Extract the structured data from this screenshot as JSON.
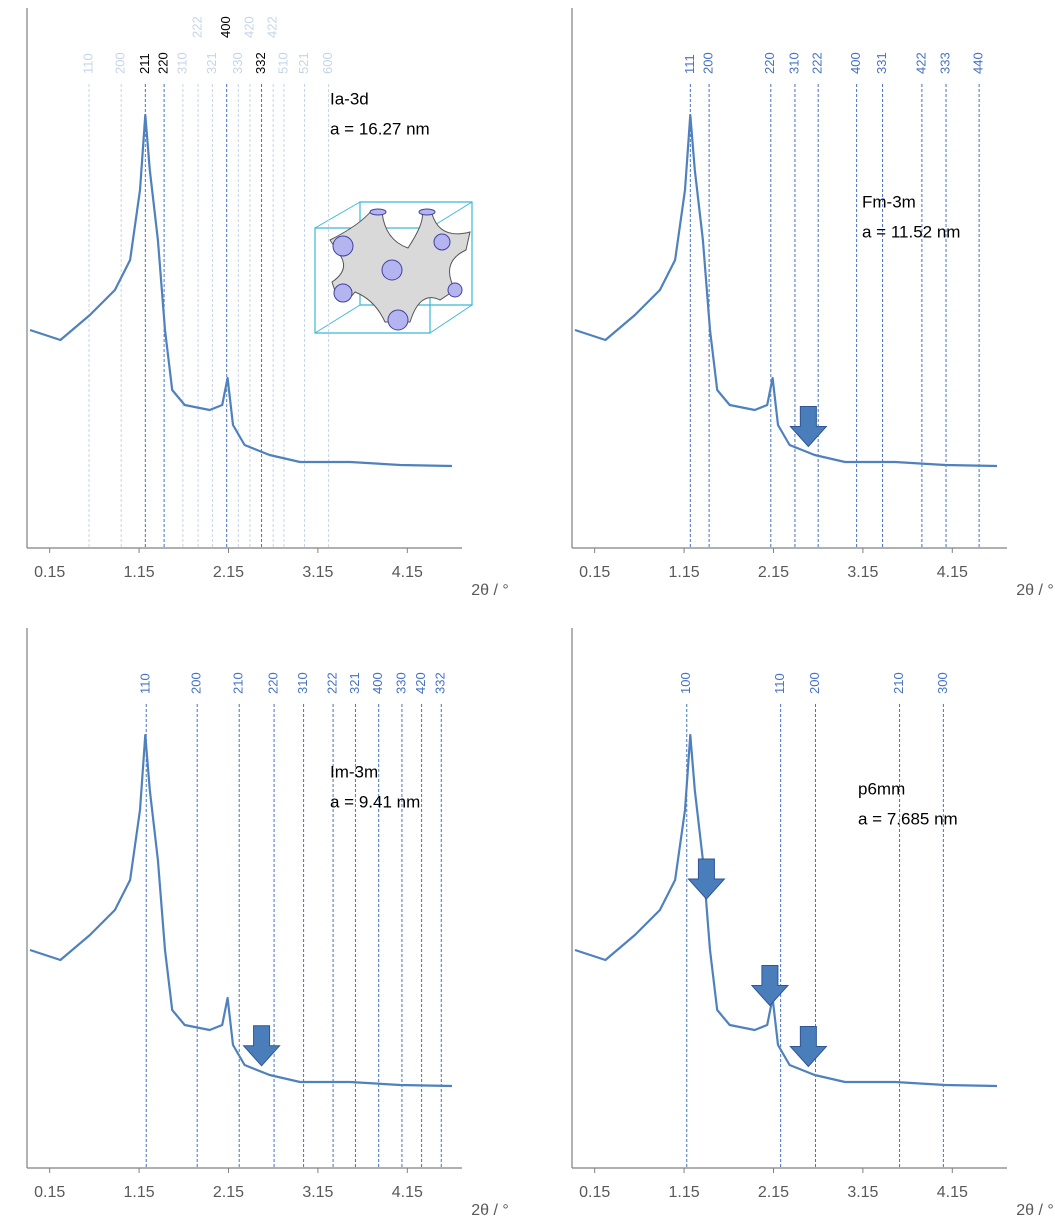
{
  "chart_data": [
    {
      "type": "line",
      "xlim": [
        -0.07,
        4.65
      ],
      "ylim": [
        0,
        540
      ],
      "xticks": [
        0.15,
        1.15,
        2.15,
        3.15,
        4.15
      ],
      "xlabel": "2θ / °",
      "annotations": [
        "Ia-3d",
        "a = 16.27 nm"
      ],
      "color": "#4f81bd",
      "reflection_color": "#4472c4",
      "x": [
        -0.07,
        0.27,
        0.6,
        0.88,
        1.05,
        1.16,
        1.22,
        1.27,
        1.36,
        1.44,
        1.52,
        1.66,
        1.94,
        2.08,
        2.14,
        2.2,
        2.33,
        2.61,
        2.95,
        3.51,
        4.07,
        4.65
      ],
      "values": [
        218,
        208,
        233,
        258,
        288,
        358,
        433,
        378,
        308,
        218,
        158,
        143,
        138,
        143,
        170,
        123,
        103,
        93,
        86,
        86,
        83,
        82
      ],
      "reflections": [
        {
          "label": "110",
          "x": 0.59,
          "color": "#c5d5e8"
        },
        {
          "label": "200",
          "x": 0.95,
          "color": "#c5d5e8"
        },
        {
          "label": "211",
          "x": 1.22,
          "color": "#000000"
        },
        {
          "label": "220",
          "x": 1.43,
          "color": "#000000"
        },
        {
          "label": "310",
          "x": 1.64,
          "color": "#c5d5e8"
        },
        {
          "label": "222",
          "x": 1.81,
          "color": "#c5d5e8"
        },
        {
          "label": "321",
          "x": 1.97,
          "color": "#c5d5e8"
        },
        {
          "label": "400",
          "x": 2.13,
          "color": "#000000"
        },
        {
          "label": "330",
          "x": 2.26,
          "color": "#c5d5e8"
        },
        {
          "label": "420",
          "x": 2.39,
          "color": "#c5d5e8"
        },
        {
          "label": "332",
          "x": 2.52,
          "color": "#000000"
        },
        {
          "label": "422",
          "x": 2.65,
          "color": "#c5d5e8"
        },
        {
          "label": "510",
          "x": 2.77,
          "color": "#c5d5e8"
        },
        {
          "label": "521",
          "x": 3.0,
          "color": "#c5d5e8"
        },
        {
          "label": "600",
          "x": 3.27,
          "color": "#c5d5e8"
        }
      ],
      "arrows": []
    },
    {
      "type": "line",
      "xlim": [
        -0.07,
        4.65
      ],
      "ylim": [
        0,
        540
      ],
      "xticks": [
        0.15,
        1.15,
        2.15,
        3.15,
        4.15
      ],
      "xlabel": "2θ / °",
      "annotations": [
        "Fm-3m",
        "a = 11.52 nm"
      ],
      "color": "#4f81bd",
      "reflection_color": "#4472c4",
      "x": [
        -0.07,
        0.27,
        0.6,
        0.88,
        1.05,
        1.16,
        1.22,
        1.27,
        1.36,
        1.44,
        1.52,
        1.66,
        1.94,
        2.08,
        2.14,
        2.2,
        2.33,
        2.61,
        2.95,
        3.51,
        4.07,
        4.65
      ],
      "values": [
        218,
        208,
        233,
        258,
        288,
        358,
        433,
        378,
        308,
        218,
        158,
        143,
        138,
        143,
        170,
        123,
        103,
        93,
        86,
        86,
        83,
        82
      ],
      "reflections": [
        {
          "label": "111",
          "x": 1.22
        },
        {
          "label": "200",
          "x": 1.43
        },
        {
          "label": "220",
          "x": 2.12
        },
        {
          "label": "310",
          "x": 2.39
        },
        {
          "label": "222",
          "x": 2.65
        },
        {
          "label": "400",
          "x": 3.08
        },
        {
          "label": "331",
          "x": 3.37
        },
        {
          "label": "422",
          "x": 3.81
        },
        {
          "label": "333",
          "x": 4.08
        },
        {
          "label": "440",
          "x": 4.45
        }
      ],
      "arrows": [
        2.54
      ]
    },
    {
      "type": "line",
      "xlim": [
        -0.07,
        4.65
      ],
      "ylim": [
        0,
        540
      ],
      "xticks": [
        0.15,
        1.15,
        2.15,
        3.15,
        4.15
      ],
      "xlabel": "2θ / °",
      "annotations": [
        "Im-3m",
        "a = 9.41 nm"
      ],
      "color": "#4f81bd",
      "reflection_color": "#4472c4",
      "x": [
        -0.07,
        0.27,
        0.6,
        0.88,
        1.05,
        1.16,
        1.22,
        1.27,
        1.36,
        1.44,
        1.52,
        1.66,
        1.94,
        2.08,
        2.14,
        2.2,
        2.33,
        2.61,
        2.95,
        3.51,
        4.07,
        4.65
      ],
      "values": [
        218,
        208,
        233,
        258,
        288,
        358,
        433,
        378,
        308,
        218,
        158,
        143,
        138,
        143,
        170,
        123,
        103,
        93,
        86,
        86,
        83,
        82
      ],
      "reflections": [
        {
          "label": "110",
          "x": 1.23
        },
        {
          "label": "200",
          "x": 1.8
        },
        {
          "label": "210",
          "x": 2.27
        },
        {
          "label": "220",
          "x": 2.66
        },
        {
          "label": "310",
          "x": 2.99
        },
        {
          "label": "222",
          "x": 3.32
        },
        {
          "label": "321",
          "x": 3.57
        },
        {
          "label": "400",
          "x": 3.83
        },
        {
          "label": "330",
          "x": 4.09
        },
        {
          "label": "420",
          "x": 4.31
        },
        {
          "label": "332",
          "x": 4.53
        }
      ],
      "arrows": [
        2.52
      ]
    },
    {
      "type": "line",
      "xlim": [
        -0.07,
        4.65
      ],
      "ylim": [
        0,
        540
      ],
      "xticks": [
        0.15,
        1.15,
        2.15,
        3.15,
        4.15
      ],
      "xlabel": "2θ / °",
      "annotations": [
        "p6mm",
        "a = 7.685 nm"
      ],
      "color": "#4f81bd",
      "reflection_color": "#4472c4",
      "x": [
        -0.07,
        0.27,
        0.6,
        0.88,
        1.05,
        1.16,
        1.22,
        1.27,
        1.36,
        1.44,
        1.52,
        1.66,
        1.94,
        2.08,
        2.14,
        2.2,
        2.33,
        2.61,
        2.95,
        3.51,
        4.07,
        4.65
      ],
      "values": [
        218,
        208,
        233,
        258,
        288,
        358,
        433,
        378,
        308,
        218,
        158,
        143,
        138,
        143,
        170,
        123,
        103,
        93,
        86,
        86,
        83,
        82
      ],
      "reflections": [
        {
          "label": "100",
          "x": 1.18
        },
        {
          "label": "110",
          "x": 2.23
        },
        {
          "label": "200",
          "x": 2.62
        },
        {
          "label": "210",
          "x": 3.56
        },
        {
          "label": "300",
          "x": 4.05
        }
      ],
      "arrows": [
        1.4,
        2.11,
        2.54
      ]
    }
  ]
}
